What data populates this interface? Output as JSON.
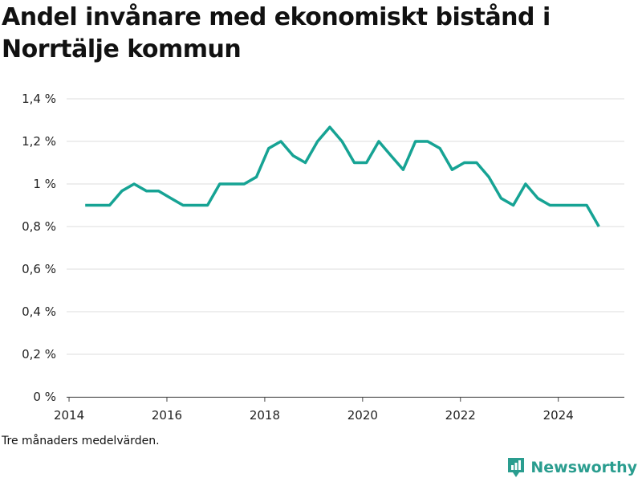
{
  "title": "Andel invånare med ekonomiskt bistånd i Norrtälje kommun",
  "footnote": "Tre månaders medelvärden.",
  "brand": {
    "name": "Newsworthy",
    "icon": "newsworthy-logo-icon",
    "color": "#2a9d8f"
  },
  "chart_data": {
    "type": "line",
    "title": "Andel invånare med ekonomiskt bistånd i Norrtälje kommun",
    "xlabel": "",
    "ylabel": "",
    "xlim": [
      2013.95,
      2025.35
    ],
    "ylim": [
      0,
      1.4
    ],
    "x_ticks": [
      2014,
      2016,
      2018,
      2020,
      2022,
      2024
    ],
    "x_tick_labels": [
      "2014",
      "2016",
      "2018",
      "2020",
      "2022",
      "2024"
    ],
    "y_ticks": [
      0,
      0.2,
      0.4,
      0.6,
      0.8,
      1.0,
      1.2,
      1.4
    ],
    "y_tick_labels": [
      "0 %",
      "0,2 %",
      "0,4 %",
      "0,6 %",
      "0,8 %",
      "1 %",
      "1,2 %",
      "1,4 %"
    ],
    "grid": "horizontal",
    "line_color": "#16a394",
    "series": [
      {
        "name": "",
        "points": [
          [
            2014.33,
            0.9
          ],
          [
            2014.58,
            0.9
          ],
          [
            2014.83,
            0.9
          ],
          [
            2015.08,
            0.967
          ],
          [
            2015.33,
            1.0
          ],
          [
            2015.58,
            0.967
          ],
          [
            2015.83,
            0.967
          ],
          [
            2016.08,
            0.933
          ],
          [
            2016.33,
            0.9
          ],
          [
            2016.58,
            0.9
          ],
          [
            2016.83,
            0.9
          ],
          [
            2017.08,
            1.0
          ],
          [
            2017.33,
            1.0
          ],
          [
            2017.58,
            1.0
          ],
          [
            2017.83,
            1.033
          ],
          [
            2018.08,
            1.167
          ],
          [
            2018.33,
            1.2
          ],
          [
            2018.58,
            1.133
          ],
          [
            2018.83,
            1.1
          ],
          [
            2019.08,
            1.2
          ],
          [
            2019.33,
            1.267
          ],
          [
            2019.58,
            1.2
          ],
          [
            2019.83,
            1.1
          ],
          [
            2020.08,
            1.1
          ],
          [
            2020.33,
            1.2
          ],
          [
            2020.58,
            1.133
          ],
          [
            2020.83,
            1.067
          ],
          [
            2021.08,
            1.2
          ],
          [
            2021.33,
            1.2
          ],
          [
            2021.58,
            1.167
          ],
          [
            2021.83,
            1.067
          ],
          [
            2022.08,
            1.1
          ],
          [
            2022.33,
            1.1
          ],
          [
            2022.58,
            1.033
          ],
          [
            2022.83,
            0.933
          ],
          [
            2023.08,
            0.9
          ],
          [
            2023.33,
            1.0
          ],
          [
            2023.58,
            0.933
          ],
          [
            2023.83,
            0.9
          ],
          [
            2024.08,
            0.9
          ],
          [
            2024.33,
            0.9
          ],
          [
            2024.58,
            0.9
          ],
          [
            2024.83,
            0.8
          ]
        ]
      }
    ]
  }
}
